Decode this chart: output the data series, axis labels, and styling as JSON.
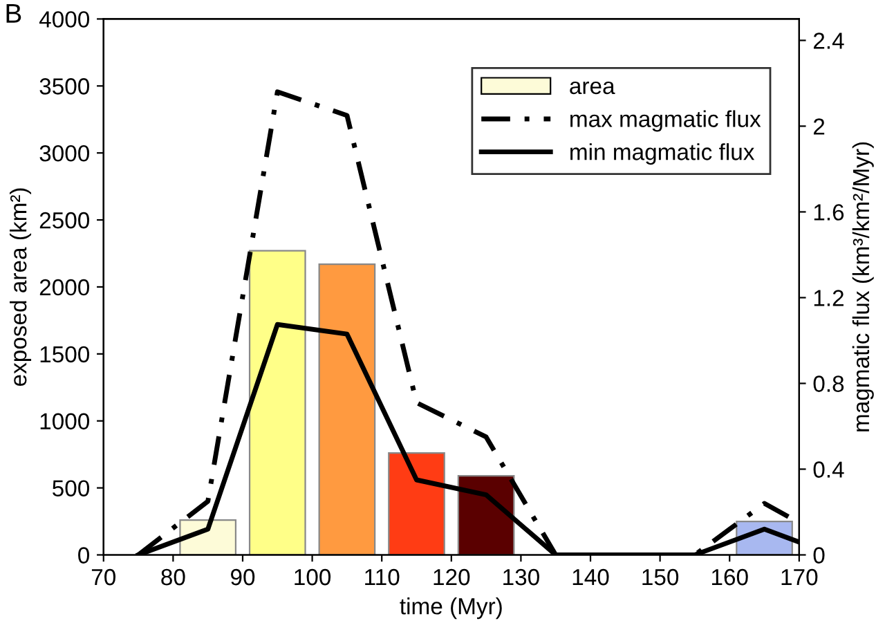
{
  "chart_data": {
    "type": "bar",
    "xlabel": "time (Myr)",
    "ylabel": "exposed area (km²)",
    "y2label": "magmatic flux (km³/km²/Myr)",
    "annotations": [
      "B"
    ],
    "xlim": [
      70,
      170
    ],
    "xticks": [
      70,
      80,
      90,
      100,
      110,
      120,
      130,
      140,
      150,
      160,
      170
    ],
    "ylim": [
      0,
      4000
    ],
    "yticks": [
      0,
      500,
      1000,
      1500,
      2000,
      2500,
      3000,
      3500,
      4000
    ],
    "y2lim": [
      0,
      2.5
    ],
    "y2ticks": [
      0,
      0.4,
      0.8,
      1.2,
      1.6,
      2,
      2.4
    ],
    "grid": false,
    "legend": "top right",
    "series": [
      {
        "name": "area",
        "x": [
          85,
          95,
          105,
          115,
          125,
          165
        ],
        "values": [
          260,
          2270,
          2170,
          760,
          590,
          250
        ],
        "colors": [
          "#fdfbd8",
          "#ffff88",
          "#ff9a40",
          "#ff3c14",
          "#5a0000",
          "#a8b8f0"
        ]
      },
      {
        "name": "max magmatic flux",
        "type": "line",
        "axis": "y2",
        "color": "#000000",
        "line_style": "dashdot",
        "marker": "none",
        "x": [
          75,
          85,
          95,
          105,
          115,
          125,
          135,
          145,
          155,
          165,
          170
        ],
        "values": [
          0,
          0.25,
          2.16,
          2.05,
          0.71,
          0.55,
          0,
          0,
          0,
          0.24,
          0.15
        ]
      },
      {
        "name": "min magmatic flux",
        "type": "line",
        "axis": "y2",
        "color": "#000000",
        "line_style": "solid",
        "marker": "none",
        "x": [
          75,
          85,
          95,
          105,
          115,
          125,
          135,
          145,
          155,
          165,
          170
        ],
        "values": [
          0,
          0.12,
          1.075,
          1.03,
          0.35,
          0.28,
          0,
          0,
          0,
          0.12,
          0.06
        ]
      }
    ]
  }
}
